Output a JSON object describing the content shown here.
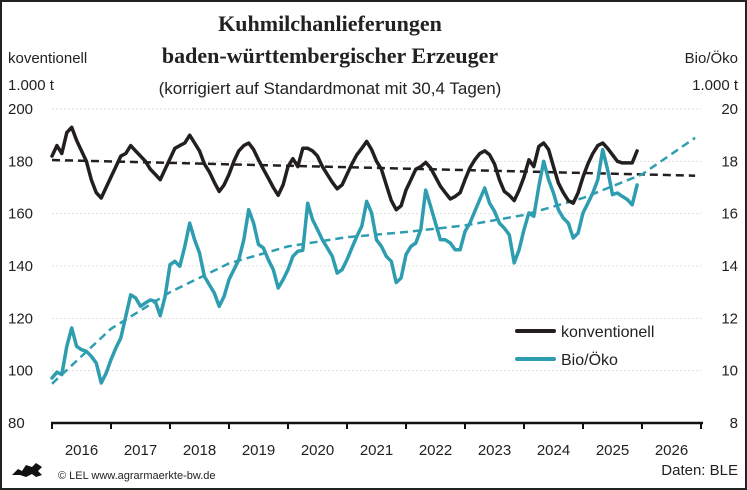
{
  "chart_data": {
    "type": "line",
    "title": "Kuhmilchanlieferungen",
    "title_line2": "baden-württembergischer Erzeuger",
    "subtitle": "(korrigiert auf Standardmonat mit 30,4 Tagen)",
    "left_axis": {
      "series_label": "koventionell",
      "unit": "1.000 t",
      "ylim": [
        80,
        200
      ],
      "ticks": [
        "200",
        "180",
        "160",
        "140",
        "120",
        "100",
        "80"
      ]
    },
    "right_axis": {
      "series_label": "Bio/Öko",
      "unit": "1.000 t",
      "ylim": [
        8,
        20
      ],
      "ticks": [
        "20",
        "18",
        "16",
        "14",
        "12",
        "10",
        "8"
      ]
    },
    "x_ticks": [
      "2016",
      "2017",
      "2018",
      "2019",
      "2020",
      "2021",
      "2022",
      "2023",
      "2024",
      "2025",
      "2026"
    ],
    "xlim": [
      2016,
      2027
    ],
    "grid": "horizontal dotted",
    "legend": {
      "position": "bottom-right",
      "entries": [
        "konventionell",
        "Bio/Öko"
      ]
    },
    "start_month": "2016-01",
    "series": [
      {
        "name": "konventionell",
        "axis": "left",
        "color": "#231f20",
        "values": [
          182,
          186,
          183,
          191,
          193,
          188,
          184,
          180,
          173,
          168,
          166,
          170,
          174,
          178,
          182,
          183,
          186,
          184,
          182,
          180,
          177,
          175,
          173,
          177,
          181,
          185,
          186,
          187,
          190,
          187,
          184,
          179,
          176,
          172,
          168.5,
          171,
          175,
          180,
          184,
          186,
          187,
          184.5,
          180.6,
          177,
          173.6,
          170,
          167,
          171,
          178,
          181,
          178,
          185,
          185,
          184,
          182,
          178,
          175,
          172,
          169.5,
          171,
          175,
          179,
          182.5,
          185,
          187.6,
          184.5,
          180,
          177,
          171,
          165,
          161.5,
          163,
          169,
          173,
          177,
          178,
          179.6,
          177.5,
          174,
          170.5,
          168,
          165.6,
          166.6,
          168,
          173,
          177.5,
          180.6,
          183,
          184,
          182.5,
          179,
          173,
          168.5,
          167,
          165,
          169,
          174,
          180.6,
          178,
          185.7,
          187,
          184.5,
          178,
          171.7,
          168,
          165,
          164,
          168,
          174,
          179,
          183,
          186,
          187,
          185,
          182.5,
          180,
          179.4,
          179.4,
          179.4,
          184
        ]
      },
      {
        "name": "Bio/Öko",
        "axis": "right",
        "color": "#2f9db0",
        "values": [
          9.72,
          9.94,
          9.85,
          10.93,
          11.63,
          10.93,
          10.8,
          10.74,
          10.55,
          10.29,
          9.53,
          9.9,
          10.42,
          10.87,
          11.25,
          12.08,
          12.9,
          12.78,
          12.46,
          12.59,
          12.7,
          12.65,
          12.1,
          12.84,
          14.05,
          14.18,
          13.99,
          14.75,
          15.64,
          15.0,
          14.5,
          13.6,
          13.29,
          12.97,
          12.46,
          12.84,
          13.48,
          13.86,
          14.24,
          15.0,
          16.15,
          15.64,
          14.82,
          14.69,
          14.24,
          13.86,
          13.16,
          13.48,
          13.86,
          14.37,
          14.56,
          14.6,
          16.4,
          15.77,
          15.39,
          15.0,
          14.69,
          14.37,
          13.73,
          13.86,
          14.24,
          14.69,
          15.13,
          15.52,
          16.47,
          16.03,
          15.0,
          14.75,
          14.37,
          14.18,
          13.37,
          13.54,
          14.43,
          14.75,
          14.88,
          15.4,
          16.9,
          16.28,
          15.64,
          15.0,
          15.0,
          14.88,
          14.62,
          14.62,
          15.32,
          15.64,
          16.09,
          16.54,
          16.98,
          16.4,
          16.09,
          15.64,
          15.45,
          15.19,
          14.12,
          14.62,
          15.39,
          16.03,
          15.9,
          17.04,
          18.0,
          17.3,
          16.79,
          16.15,
          15.83,
          15.64,
          15.07,
          15.26,
          16.03,
          16.4,
          16.79,
          17.3,
          18.45,
          17.68,
          16.73,
          16.79,
          16.66,
          16.54,
          16.34,
          17.1
        ]
      },
      {
        "name": "Trend konventionell",
        "axis": "left",
        "color": "#231f20",
        "dashed": true,
        "points": [
          [
            2016,
            180.5
          ],
          [
            2026.9,
            174.5
          ]
        ]
      },
      {
        "name": "Trend Bio/Öko",
        "axis": "right",
        "color": "#2f9db0",
        "dashed": true,
        "points": [
          [
            2016,
            9.5
          ],
          [
            2017,
            11.6
          ],
          [
            2018,
            13.0
          ],
          [
            2019,
            14.1
          ],
          [
            2020,
            14.75
          ],
          [
            2021,
            15.1
          ],
          [
            2022,
            15.3
          ],
          [
            2023,
            15.55
          ],
          [
            2024,
            15.95
          ],
          [
            2025,
            16.6
          ],
          [
            2026,
            17.5
          ],
          [
            2026.9,
            18.9
          ]
        ]
      }
    ]
  },
  "footer": {
    "copyright": "© LEL www.agrarmaerkte-bw.de",
    "source": "Daten: BLE",
    "logo_icon": "lion-logo-icon"
  }
}
